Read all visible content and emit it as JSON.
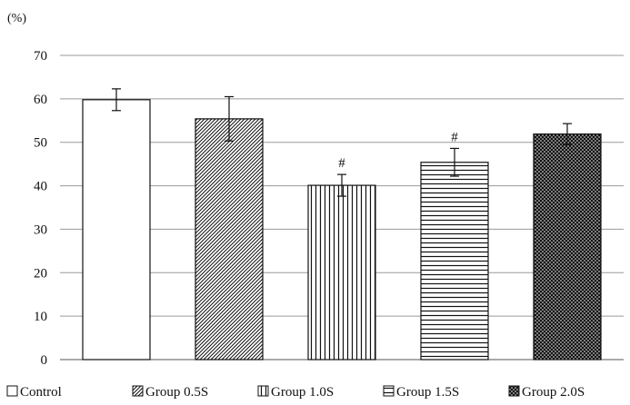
{
  "chart_data": {
    "type": "bar",
    "title": "",
    "xlabel": "",
    "ylabel": "(%)",
    "ylim": [
      0,
      70
    ],
    "yticks": [
      0,
      10,
      20,
      30,
      40,
      50,
      60,
      70
    ],
    "grid": true,
    "legend_position": "bottom",
    "categories": [
      "Control",
      "Group 0.5S",
      "Group 1.0S",
      "Group 1.5S",
      "Group 2.0S"
    ],
    "values": [
      59.8,
      55.4,
      40.1,
      45.4,
      51.9
    ],
    "error": [
      2.5,
      5.1,
      2.5,
      3.2,
      2.4
    ],
    "annotations": [
      "",
      "",
      "#",
      "#",
      ""
    ],
    "patterns": [
      "solid-white",
      "diagonal-dense",
      "vertical-lines",
      "horizontal-lines",
      "dots-on-black"
    ]
  }
}
